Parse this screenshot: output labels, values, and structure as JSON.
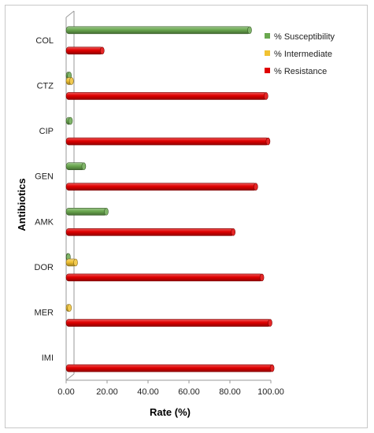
{
  "chart_data": {
    "type": "bar",
    "orientation": "horizontal",
    "categories": [
      "COL",
      "CTZ",
      "CIP",
      "GEN",
      "AMK",
      "DOR",
      "MER",
      "IMI"
    ],
    "series": [
      {
        "name": "% Susceptibility",
        "color": "#6aa84f",
        "values": [
          90,
          2,
          2.5,
          9,
          20,
          1.5,
          0,
          0
        ]
      },
      {
        "name": "% Intermediate",
        "color": "#f1c232",
        "values": [
          0,
          3,
          0,
          0,
          0,
          5,
          2,
          0
        ]
      },
      {
        "name": "% Resistance",
        "color": "#e00000",
        "values": [
          18,
          98,
          99,
          93,
          82,
          96,
          100,
          101
        ]
      }
    ],
    "xlabel": "Rate (%)",
    "ylabel": "Antibiotics",
    "xlim": [
      0,
      100
    ],
    "xticks": [
      "0.00",
      "20.00",
      "40.00",
      "60.00",
      "80.00",
      "100.00"
    ],
    "grid": false,
    "legend_position": "top-right"
  }
}
